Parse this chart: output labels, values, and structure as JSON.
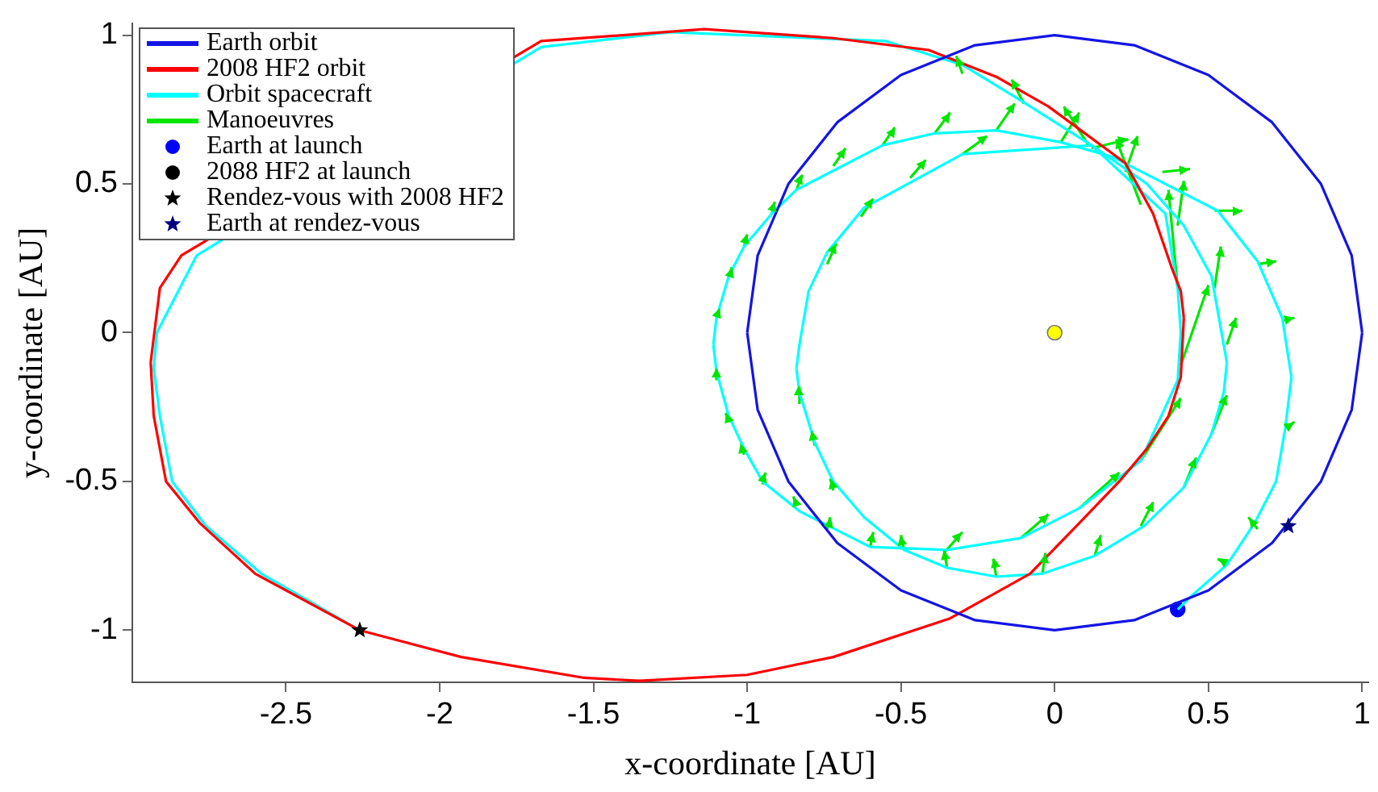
{
  "chart_data": {
    "type": "line",
    "xlabel": "x-coordinate [AU]",
    "ylabel": "y-coordinate [AU]",
    "xlim": [
      -3,
      1.02
    ],
    "xticks": [
      -2.5,
      -2,
      -1.5,
      -1,
      -0.5,
      0,
      0.5,
      1
    ],
    "ylim": [
      -1.175,
      1.04
    ],
    "yticks": [
      -1,
      -0.5,
      0,
      0.5,
      1
    ],
    "grid": false,
    "legend": "top left",
    "series": [
      {
        "name": "Earth orbit",
        "color": "#1414e6",
        "x": [
          1,
          0.966,
          0.866,
          0.707,
          0.5,
          0.259,
          0,
          -0.259,
          -0.5,
          -0.707,
          -0.866,
          -0.966,
          -1,
          null,
          -1,
          -0.966,
          -0.866,
          -0.707,
          -0.5,
          -0.259,
          0,
          0.259,
          0.5,
          0.707,
          0.866,
          0.966,
          1
        ],
        "values": [
          0,
          0.259,
          0.5,
          0.707,
          0.866,
          0.966,
          1,
          0.966,
          0.866,
          0.707,
          0.5,
          0.259,
          0,
          null,
          0,
          -0.259,
          -0.5,
          -0.707,
          -0.866,
          -0.966,
          -1,
          -0.966,
          -0.866,
          -0.707,
          -0.5,
          -0.259,
          0
        ]
      },
      {
        "name": "2008 HF2 orbit",
        "color": "#ff0000",
        "x": [
          0.42,
          0.41,
          0.38,
          0.32,
          0.23,
          -0.02,
          -0.19,
          -0.41,
          -0.72,
          -1.14,
          -1.67,
          -2.84,
          -2.91,
          -2.94,
          null,
          -2.94,
          -2.93,
          -2.89,
          -2.78,
          -2.6,
          -2.26,
          -1.93,
          -1.53,
          -1.35,
          -1.0,
          -0.72,
          -0.34,
          -0.08,
          0.08,
          0.21,
          0.3,
          0.37,
          0.41,
          0.42
        ],
        "values": [
          0.05,
          0.14,
          0.22,
          0.4,
          0.57,
          0.76,
          0.86,
          0.95,
          0.99,
          1.02,
          0.98,
          0.26,
          0.15,
          -0.1,
          null,
          -0.1,
          -0.28,
          -0.5,
          -0.64,
          -0.81,
          -1.0,
          -1.09,
          -1.16,
          -1.17,
          -1.15,
          -1.09,
          -0.96,
          -0.81,
          -0.64,
          -0.5,
          -0.39,
          -0.28,
          -0.15,
          0.05
        ]
      },
      {
        "name": "Orbit spacecraft",
        "color": "#00ffff",
        "x": [
          0.4,
          0.45,
          0.56,
          0.65,
          0.72,
          0.75,
          0.77,
          null,
          0.77,
          0.74,
          0.66,
          0.53,
          0.19,
          0.02,
          -0.19,
          -0.39,
          -0.56,
          -0.84,
          -0.92,
          -1.01,
          -1.06,
          -1.1,
          -1.11,
          null,
          -1.11,
          -1.1,
          -1.06,
          -1.01,
          -0.95,
          -0.83,
          -0.6,
          -0.35,
          -0.11,
          0.08,
          0.28,
          0.4,
          0.41,
          null,
          0.41,
          0.4,
          0.36,
          0.12,
          -0.3,
          -0.62,
          -0.74,
          -0.8,
          -0.83,
          -0.84,
          null,
          -0.84,
          -0.83,
          -0.78,
          -0.72,
          -0.62,
          -0.49,
          -0.35,
          -0.19,
          -0.04,
          0.13,
          0.29,
          0.42,
          0.51,
          0.55,
          0.56,
          null,
          0.56,
          0.51,
          0.42,
          0.3,
          0.12,
          -0.11,
          -0.3,
          -0.55,
          -1.25,
          -1.67,
          -2.79,
          -2.92,
          -2.93,
          null,
          -2.93,
          -2.91,
          -2.87,
          -2.76,
          -2.58,
          -2.26
        ],
        "values": [
          -0.93,
          -0.88,
          -0.78,
          -0.64,
          -0.5,
          -0.32,
          -0.15,
          null,
          -0.15,
          0.05,
          0.24,
          0.41,
          0.59,
          0.64,
          0.68,
          0.67,
          0.63,
          0.48,
          0.4,
          0.29,
          0.19,
          0.05,
          -0.04,
          null,
          -0.04,
          -0.13,
          -0.28,
          -0.39,
          -0.5,
          -0.6,
          -0.72,
          -0.73,
          -0.69,
          -0.59,
          -0.43,
          -0.16,
          0.0,
          null,
          0.0,
          0.15,
          0.4,
          0.63,
          0.6,
          0.42,
          0.27,
          0.14,
          -0.04,
          -0.12,
          null,
          -0.12,
          -0.2,
          -0.37,
          -0.5,
          -0.62,
          -0.73,
          -0.79,
          -0.82,
          -0.81,
          -0.75,
          -0.65,
          -0.52,
          -0.34,
          -0.2,
          -0.1,
          null,
          -0.1,
          0.19,
          0.36,
          0.5,
          0.63,
          0.78,
          0.9,
          0.98,
          1.01,
          0.96,
          0.26,
          0,
          -0.12,
          null,
          -0.12,
          -0.28,
          -0.5,
          -0.65,
          -0.81,
          -1.0
        ]
      },
      {
        "name": "Manoeuvres",
        "color": "#00e600",
        "x": [
          -0.1,
          -0.14,
          null,
          -0.3,
          -0.32,
          null,
          0.02,
          0.08,
          null,
          0.11,
          0.03,
          null,
          -0.19,
          -0.13,
          null,
          -0.39,
          -0.34,
          null,
          -0.56,
          -0.52,
          null,
          -0.72,
          -0.68,
          null,
          -0.84,
          -0.82,
          null,
          -0.3,
          -0.22,
          null,
          -0.47,
          -0.42,
          null,
          -0.63,
          -0.59,
          null,
          -0.74,
          -0.71,
          null,
          0.12,
          0.24,
          null,
          0.23,
          0.27,
          null,
          0.28,
          0.2,
          null,
          0.35,
          0.44,
          null,
          0.4,
          0.42,
          null,
          0.4,
          0.37,
          null,
          0.52,
          0.61,
          null,
          0.52,
          0.54,
          null,
          0.41,
          0.5,
          null,
          0.56,
          0.59,
          null,
          0.66,
          0.72,
          null,
          0.74,
          0.78,
          null,
          0.75,
          0.78,
          null,
          0.66,
          0.63,
          null,
          0.56,
          0.53,
          null,
          0.28,
          0.32,
          null,
          0.42,
          0.46,
          null,
          0.51,
          0.56,
          null,
          0.13,
          0.15,
          null,
          -0.04,
          -0.03,
          null,
          -0.19,
          -0.2,
          null,
          -0.35,
          -0.36,
          null,
          -0.49,
          -0.5,
          null,
          0.08,
          0.21,
          null,
          -0.11,
          -0.02,
          null,
          -0.36,
          -0.3,
          null,
          -0.6,
          -0.59,
          null,
          -0.74,
          -0.73,
          null,
          -0.84,
          -0.85,
          null,
          -0.95,
          -0.94,
          null,
          -1.01,
          -1.02,
          null,
          -1.06,
          -1.07,
          null,
          -0.72,
          -0.73,
          null,
          -0.78,
          -0.79,
          null,
          -0.83,
          -0.83,
          null,
          0.28,
          0.41,
          null,
          -0.92,
          -0.91,
          null,
          -1.01,
          -1.0,
          null,
          -1.06,
          -1.05,
          null,
          -1.1,
          -1.09,
          null,
          -1.1,
          -1.1
        ],
        "values": [
          0.77,
          0.85,
          null,
          0.87,
          0.93,
          null,
          0.64,
          0.74,
          null,
          0.63,
          0.76,
          null,
          0.68,
          0.77,
          null,
          0.67,
          0.74,
          null,
          0.63,
          0.69,
          null,
          0.56,
          0.62,
          null,
          0.48,
          0.53,
          null,
          0.6,
          0.66,
          null,
          0.52,
          0.58,
          null,
          0.39,
          0.45,
          null,
          0.23,
          0.3,
          null,
          0.62,
          0.65,
          null,
          0.54,
          0.66,
          null,
          0.43,
          0.65,
          null,
          0.54,
          0.55,
          null,
          0.36,
          0.51,
          null,
          0.15,
          0.48,
          null,
          0.41,
          0.41,
          null,
          0.15,
          0.29,
          null,
          -0.11,
          0.16,
          null,
          -0.04,
          0.05,
          null,
          0.23,
          0.24,
          null,
          0.04,
          0.05,
          null,
          -0.32,
          -0.3,
          null,
          -0.66,
          -0.62,
          null,
          -0.78,
          -0.76,
          null,
          -0.65,
          -0.57,
          null,
          -0.52,
          -0.42,
          null,
          -0.34,
          -0.21,
          null,
          -0.75,
          -0.68,
          null,
          -0.81,
          -0.74,
          null,
          -0.82,
          -0.76,
          null,
          -0.79,
          -0.73,
          null,
          -0.73,
          -0.68,
          null,
          -0.59,
          -0.47,
          null,
          -0.69,
          -0.61,
          null,
          -0.74,
          -0.67,
          null,
          -0.72,
          -0.67,
          null,
          -0.66,
          -0.62,
          null,
          -0.58,
          -0.55,
          null,
          -0.51,
          -0.47,
          null,
          -0.41,
          -0.37,
          null,
          -0.3,
          -0.27,
          null,
          -0.53,
          -0.49,
          null,
          -0.38,
          -0.33,
          null,
          -0.24,
          -0.18,
          null,
          -0.43,
          -0.22,
          null,
          0.4,
          0.44,
          null,
          0.29,
          0.33,
          null,
          0.19,
          0.22,
          null,
          0.05,
          0.08,
          null,
          -0.16,
          -0.12
        ]
      },
      {
        "name": "Earth at launch",
        "type": "scatter",
        "marker": "circle",
        "color": "#0000ff",
        "x": [
          0.4
        ],
        "values": [
          -0.93
        ]
      },
      {
        "name": "2088 HF2 at launch",
        "type": "scatter",
        "marker": "circle",
        "color": "#000000",
        "x": [
          null
        ],
        "values": [
          null
        ]
      },
      {
        "name": "Rendez-vous with 2008 HF2",
        "type": "scatter",
        "marker": "star",
        "color": "#000000",
        "x": [
          -2.26
        ],
        "values": [
          -1.0
        ]
      },
      {
        "name": "Earth at rendez-vous",
        "type": "scatter",
        "marker": "star",
        "color": "#000080",
        "x": [
          0.76
        ],
        "values": [
          -0.65
        ]
      },
      {
        "type": "scatter",
        "marker": "circle",
        "color": "#ffff00",
        "x": [
          0
        ],
        "values": [
          0
        ]
      }
    ]
  }
}
